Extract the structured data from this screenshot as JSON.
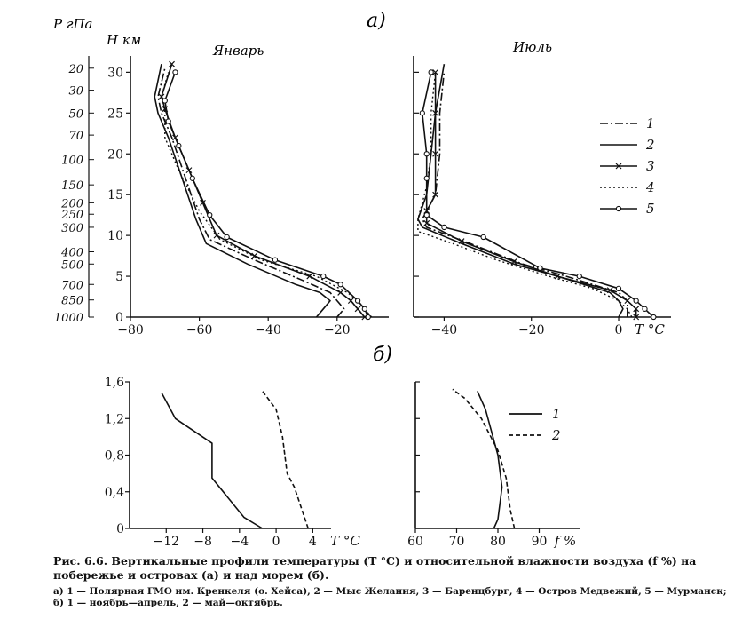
{
  "figure": {
    "part_a_label": "а)",
    "part_b_label": "б)",
    "caption": "Рис. 6.6. Вертикальные профили температуры (T °C) и относительной влажности воздуха (f %) на побережье и островах (а) и над морем (б).",
    "caption_legend": "а) 1 — Полярная ГМО им. Кренкеля (о. Хейса), 2 — Мыс Желания, 3 — Баренцбург, 4 — Остров Медвежий, 5 — Мурманск; б) 1 — ноябрь—апрель, 2 — май—октябрь."
  },
  "chart_data": [
    {
      "id": "january",
      "type": "line",
      "title": "Январь",
      "xlabel": "",
      "ylabel": "H км",
      "y2label": "P гПа",
      "xlim": [
        -80,
        -5
      ],
      "ylim": [
        0,
        32
      ],
      "xticks": [
        -80,
        -60,
        -40,
        -20
      ],
      "yticks": [
        0,
        5,
        10,
        15,
        20,
        25,
        30
      ],
      "pressure_ticks": [
        {
          "p": "20",
          "h": 30.5
        },
        {
          "p": "30",
          "h": 27.8
        },
        {
          "p": "50",
          "h": 25.0
        },
        {
          "p": "70",
          "h": 22.3
        },
        {
          "p": "100",
          "h": 19.3
        },
        {
          "p": "150",
          "h": 16.2
        },
        {
          "p": "200",
          "h": 14.0
        },
        {
          "p": "250",
          "h": 12.6
        },
        {
          "p": "300",
          "h": 11.0
        },
        {
          "p": "400",
          "h": 8.0
        },
        {
          "p": "500",
          "h": 6.5
        },
        {
          "p": "700",
          "h": 4.0
        },
        {
          "p": "850",
          "h": 2.1
        },
        {
          "p": "1000",
          "h": 0.0
        }
      ],
      "series": [
        {
          "name": "1",
          "style": "dashdot",
          "marker": "none",
          "points": [
            [
              -20,
              0
            ],
            [
              -18,
              1
            ],
            [
              -20,
              2
            ],
            [
              -22,
              3
            ],
            [
              -30,
              4.5
            ],
            [
              -44,
              7
            ],
            [
              -57,
              9.5
            ],
            [
              -60,
              12
            ],
            [
              -64,
              17
            ],
            [
              -68,
              22
            ],
            [
              -71,
              25
            ],
            [
              -72,
              27
            ],
            [
              -70,
              30.5
            ]
          ]
        },
        {
          "name": "2",
          "style": "solid",
          "marker": "none",
          "points": [
            [
              -26,
              0
            ],
            [
              -24,
              1
            ],
            [
              -22,
              2
            ],
            [
              -25,
              3
            ],
            [
              -32,
              4
            ],
            [
              -46,
              6.5
            ],
            [
              -58,
              9
            ],
            [
              -61,
              12
            ],
            [
              -65,
              17
            ],
            [
              -69,
              22
            ],
            [
              -72,
              25
            ],
            [
              -73,
              27
            ],
            [
              -71,
              31
            ]
          ]
        },
        {
          "name": "3",
          "style": "solid",
          "marker": "x",
          "points": [
            [
              -12,
              0
            ],
            [
              -14,
              1
            ],
            [
              -16,
              2
            ],
            [
              -19,
              3
            ],
            [
              -28,
              5
            ],
            [
              -44,
              7.5
            ],
            [
              -55,
              10
            ],
            [
              -59,
              14
            ],
            [
              -63,
              18
            ],
            [
              -67,
              22
            ],
            [
              -70,
              25.5
            ],
            [
              -71,
              27
            ],
            [
              -68,
              31
            ]
          ]
        },
        {
          "name": "4",
          "style": "dotted",
          "marker": "none",
          "points": [
            [
              -10,
              0
            ],
            [
              -12,
              1
            ],
            [
              -14,
              2
            ],
            [
              -17,
              3
            ],
            [
              -26,
              5
            ],
            [
              -42,
              7
            ],
            [
              -54,
              9.5
            ],
            [
              -60,
              13
            ],
            [
              -66,
              18
            ],
            [
              -70,
              22
            ],
            [
              -70,
              25
            ],
            [
              -71,
              27
            ],
            [
              -69,
              30
            ]
          ]
        },
        {
          "name": "5",
          "style": "solid",
          "marker": "circle",
          "points": [
            [
              -11,
              0
            ],
            [
              -12,
              1
            ],
            [
              -14,
              2
            ],
            [
              -19,
              4
            ],
            [
              -24,
              5
            ],
            [
              -38,
              7
            ],
            [
              -52,
              9.8
            ],
            [
              -57,
              12.5
            ],
            [
              -62,
              17
            ],
            [
              -66,
              21
            ],
            [
              -69,
              24
            ],
            [
              -70,
              26.5
            ],
            [
              -67,
              30
            ]
          ]
        }
      ]
    },
    {
      "id": "july",
      "type": "line",
      "title": "Июль",
      "xlabel": "T °C",
      "ylabel": "",
      "xlim": [
        -47,
        12
      ],
      "ylim": [
        0,
        32
      ],
      "xticks": [
        -40,
        -20,
        0
      ],
      "yticks": [
        0,
        5,
        10,
        15,
        20,
        25,
        30
      ],
      "series": [
        {
          "name": "1",
          "style": "dashdot",
          "marker": "none",
          "points": [
            [
              2,
              0
            ],
            [
              2,
              1
            ],
            [
              2,
              2
            ],
            [
              0,
              3
            ],
            [
              -12,
              5
            ],
            [
              -22,
              6.5
            ],
            [
              -34,
              9
            ],
            [
              -44,
              11
            ],
            [
              -45,
              12
            ],
            [
              -42,
              15
            ],
            [
              -41,
              20
            ],
            [
              -41,
              25
            ],
            [
              -40,
              30
            ]
          ]
        },
        {
          "name": "2",
          "style": "solid",
          "marker": "none",
          "points": [
            [
              0,
              0
            ],
            [
              1,
              1
            ],
            [
              0,
              2
            ],
            [
              -2,
              3
            ],
            [
              -14,
              5
            ],
            [
              -24,
              6.5
            ],
            [
              -36,
              9
            ],
            [
              -45,
              11
            ],
            [
              -46,
              12
            ],
            [
              -44,
              15
            ],
            [
              -43,
              20
            ],
            [
              -42,
              25
            ],
            [
              -40,
              31
            ]
          ]
        },
        {
          "name": "3",
          "style": "solid",
          "marker": "x",
          "points": [
            [
              4,
              0
            ],
            [
              4,
              1
            ],
            [
              2,
              2
            ],
            [
              -2,
              3.3
            ],
            [
              -14,
              5
            ],
            [
              -24,
              6.8
            ],
            [
              -36,
              9.3
            ],
            [
              -44,
              11.5
            ],
            [
              -44,
              13
            ],
            [
              -42,
              15
            ],
            [
              -42,
              20
            ],
            [
              -42,
              25
            ],
            [
              -42,
              30
            ]
          ]
        },
        {
          "name": "4",
          "style": "dotted",
          "marker": "none",
          "points": [
            [
              3,
              0
            ],
            [
              2,
              1
            ],
            [
              0,
              2
            ],
            [
              -6,
              3.5
            ],
            [
              -16,
              5
            ],
            [
              -28,
              7
            ],
            [
              -38,
              9
            ],
            [
              -46,
              10.5
            ],
            [
              -46,
              12
            ],
            [
              -44,
              16
            ],
            [
              -43,
              20
            ],
            [
              -43,
              25
            ],
            [
              -42,
              30
            ]
          ]
        },
        {
          "name": "5",
          "style": "solid",
          "marker": "circle",
          "points": [
            [
              8,
              0
            ],
            [
              6,
              1
            ],
            [
              4,
              2
            ],
            [
              0,
              3.5
            ],
            [
              -9,
              5
            ],
            [
              -18,
              6
            ],
            [
              -31,
              9.8
            ],
            [
              -40,
              11
            ],
            [
              -44,
              12.5
            ],
            [
              -44,
              17
            ],
            [
              -44,
              20
            ],
            [
              -45,
              25
            ],
            [
              -43,
              30
            ]
          ]
        }
      ]
    },
    {
      "id": "sea_temperature",
      "type": "line",
      "title": "",
      "xlabel": "T °C",
      "ylabel": "",
      "xlim": [
        -16,
        6
      ],
      "ylim": [
        0,
        1.6
      ],
      "xticks": [
        -12,
        -8,
        -4,
        0,
        4
      ],
      "yticks": [
        0,
        0.4,
        0.8,
        1.2,
        1.6
      ],
      "ytick_labels": [
        "0",
        "0,4",
        "0,8",
        "1,2",
        "1,6"
      ],
      "series": [
        {
          "name": "1",
          "style": "solid",
          "points": [
            [
              -1.5,
              0
            ],
            [
              -3.5,
              0.12
            ],
            [
              -7,
              0.55
            ],
            [
              -7,
              0.93
            ],
            [
              -11,
              1.2
            ],
            [
              -12.5,
              1.48
            ]
          ]
        },
        {
          "name": "2",
          "style": "dashed",
          "points": [
            [
              3.5,
              0
            ],
            [
              3,
              0.15
            ],
            [
              2,
              0.45
            ],
            [
              1.2,
              0.6
            ],
            [
              0.7,
              1.0
            ],
            [
              0,
              1.3
            ],
            [
              -1.5,
              1.5
            ]
          ]
        }
      ]
    },
    {
      "id": "sea_humidity",
      "type": "line",
      "title": "",
      "xlabel": "f %",
      "ylabel": "",
      "xlim": [
        60,
        100
      ],
      "ylim": [
        0,
        1.6
      ],
      "xticks": [
        60,
        70,
        80,
        90
      ],
      "yticks": [
        0,
        0.4,
        0.8,
        1.2,
        1.6
      ],
      "series": [
        {
          "name": "1",
          "style": "solid",
          "points": [
            [
              79,
              0
            ],
            [
              80,
              0.1
            ],
            [
              81,
              0.45
            ],
            [
              80,
              0.8
            ],
            [
              77,
              1.3
            ],
            [
              75,
              1.5
            ]
          ]
        },
        {
          "name": "2",
          "style": "dashed",
          "points": [
            [
              84,
              0
            ],
            [
              83,
              0.2
            ],
            [
              82,
              0.55
            ],
            [
              80,
              0.85
            ],
            [
              76,
              1.2
            ],
            [
              72,
              1.42
            ],
            [
              69,
              1.52
            ]
          ]
        }
      ]
    }
  ]
}
